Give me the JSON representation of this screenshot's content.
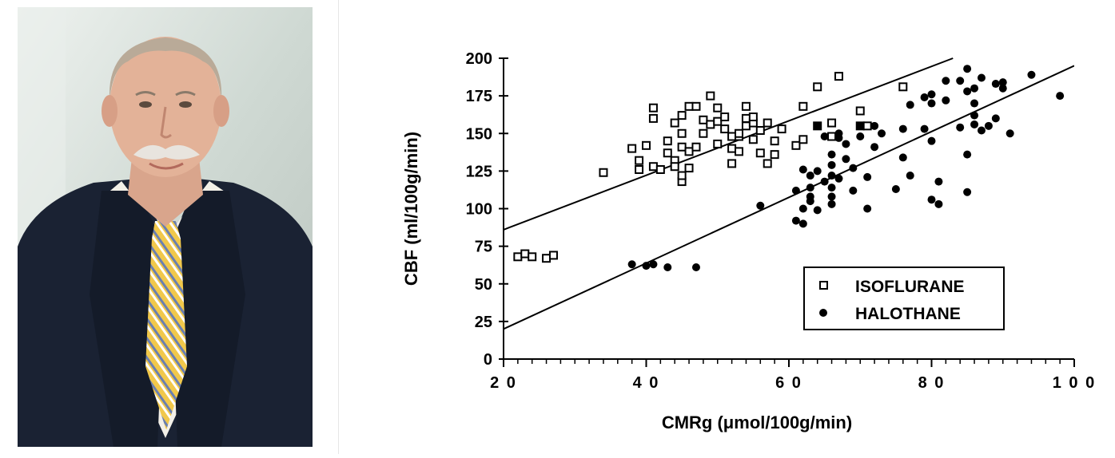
{
  "photo": {
    "description_icon": "portrait-photo",
    "colors": {
      "background": "#c9d3cd",
      "suit": "#1a2233",
      "shirt": "#f3f0e8",
      "tie_stripe_a": "#f1c84b",
      "tie_stripe_b": "#6a7fb0"
    }
  },
  "chart_data": {
    "type": "scatter",
    "title": "",
    "xlabel": "CMRg (μmol/100g/min)",
    "ylabel": "CBF (ml/100g/min)",
    "xlim": [
      20,
      100
    ],
    "ylim": [
      0,
      200
    ],
    "x_ticks": [
      20,
      40,
      60,
      80,
      100
    ],
    "x_tick_labels": [
      "2 0",
      "4 0",
      "6 0",
      "8 0",
      "1 0 0"
    ],
    "y_ticks": [
      0,
      25,
      50,
      75,
      100,
      125,
      150,
      175,
      200
    ],
    "y_tick_labels": [
      "0",
      "25",
      "50",
      "75",
      "100",
      "125",
      "150",
      "175",
      "200"
    ],
    "grid": false,
    "legend_position": "lower-right",
    "series": [
      {
        "name": "ISOFLURANE",
        "marker": "open-square",
        "color": "#000000",
        "points": [
          [
            22,
            68
          ],
          [
            23,
            70
          ],
          [
            24,
            68
          ],
          [
            26,
            67
          ],
          [
            27,
            69
          ],
          [
            34,
            124
          ],
          [
            38,
            140
          ],
          [
            39,
            132
          ],
          [
            39,
            126
          ],
          [
            40,
            142
          ],
          [
            41,
            160
          ],
          [
            41,
            167
          ],
          [
            41,
            128
          ],
          [
            42,
            126
          ],
          [
            43,
            145
          ],
          [
            43,
            137
          ],
          [
            44,
            132
          ],
          [
            44,
            128
          ],
          [
            44,
            157
          ],
          [
            45,
            162
          ],
          [
            45,
            150
          ],
          [
            45,
            118
          ],
          [
            45,
            122
          ],
          [
            45,
            141
          ],
          [
            46,
            127
          ],
          [
            46,
            138
          ],
          [
            46,
            168
          ],
          [
            47,
            168
          ],
          [
            47,
            141
          ],
          [
            48,
            159
          ],
          [
            48,
            150
          ],
          [
            49,
            175
          ],
          [
            49,
            156
          ],
          [
            50,
            167
          ],
          [
            50,
            158
          ],
          [
            50,
            143
          ],
          [
            51,
            153
          ],
          [
            51,
            161
          ],
          [
            52,
            140
          ],
          [
            52,
            148
          ],
          [
            52,
            130
          ],
          [
            53,
            148
          ],
          [
            53,
            150
          ],
          [
            53,
            138
          ],
          [
            54,
            168
          ],
          [
            54,
            160
          ],
          [
            54,
            155
          ],
          [
            55,
            157
          ],
          [
            55,
            146
          ],
          [
            55,
            161
          ],
          [
            56,
            152
          ],
          [
            56,
            137
          ],
          [
            57,
            157
          ],
          [
            57,
            130
          ],
          [
            58,
            145
          ],
          [
            58,
            136
          ],
          [
            59,
            153
          ],
          [
            61,
            142
          ],
          [
            62,
            168
          ],
          [
            62,
            146
          ],
          [
            64,
            181
          ],
          [
            64,
            155
          ],
          [
            66,
            148
          ],
          [
            66,
            157
          ],
          [
            67,
            188
          ],
          [
            70,
            165
          ],
          [
            70,
            155
          ],
          [
            71,
            155
          ],
          [
            76,
            181
          ]
        ]
      },
      {
        "name": "HALOTHANE",
        "marker": "filled-circle",
        "color": "#000000",
        "points": [
          [
            38,
            63
          ],
          [
            40,
            62
          ],
          [
            41,
            63
          ],
          [
            43,
            61
          ],
          [
            47,
            61
          ],
          [
            56,
            102
          ],
          [
            61,
            92
          ],
          [
            61,
            112
          ],
          [
            62,
            90
          ],
          [
            62,
            100
          ],
          [
            62,
            126
          ],
          [
            63,
            122
          ],
          [
            63,
            114
          ],
          [
            63,
            105
          ],
          [
            63,
            108
          ],
          [
            64,
            99
          ],
          [
            64,
            125
          ],
          [
            64,
            155
          ],
          [
            65,
            148
          ],
          [
            65,
            118
          ],
          [
            66,
            136
          ],
          [
            66,
            129
          ],
          [
            66,
            103
          ],
          [
            66,
            108
          ],
          [
            66,
            114
          ],
          [
            66,
            122
          ],
          [
            67,
            150
          ],
          [
            67,
            120
          ],
          [
            67,
            147
          ],
          [
            68,
            143
          ],
          [
            68,
            133
          ],
          [
            69,
            127
          ],
          [
            69,
            112
          ],
          [
            70,
            148
          ],
          [
            70,
            155
          ],
          [
            71,
            121
          ],
          [
            71,
            100
          ],
          [
            72,
            141
          ],
          [
            72,
            155
          ],
          [
            73,
            150
          ],
          [
            75,
            113
          ],
          [
            76,
            134
          ],
          [
            76,
            153
          ],
          [
            77,
            169
          ],
          [
            77,
            122
          ],
          [
            79,
            174
          ],
          [
            79,
            153
          ],
          [
            80,
            176
          ],
          [
            80,
            170
          ],
          [
            80,
            145
          ],
          [
            80,
            106
          ],
          [
            81,
            118
          ],
          [
            81,
            103
          ],
          [
            82,
            172
          ],
          [
            82,
            185
          ],
          [
            84,
            185
          ],
          [
            84,
            154
          ],
          [
            85,
            178
          ],
          [
            85,
            193
          ],
          [
            85,
            136
          ],
          [
            85,
            111
          ],
          [
            86,
            170
          ],
          [
            86,
            162
          ],
          [
            86,
            156
          ],
          [
            86,
            180
          ],
          [
            87,
            152
          ],
          [
            87,
            187
          ],
          [
            88,
            155
          ],
          [
            89,
            183
          ],
          [
            89,
            160
          ],
          [
            90,
            184
          ],
          [
            90,
            180
          ],
          [
            91,
            150
          ],
          [
            94,
            189
          ],
          [
            98,
            175
          ]
        ]
      }
    ],
    "regression_lines": [
      {
        "series": "ISOFLURANE",
        "from": [
          20,
          86
        ],
        "to": [
          83,
          200
        ]
      },
      {
        "series": "HALOTHANE",
        "from": [
          20,
          20
        ],
        "to": [
          100,
          195
        ]
      }
    ]
  }
}
